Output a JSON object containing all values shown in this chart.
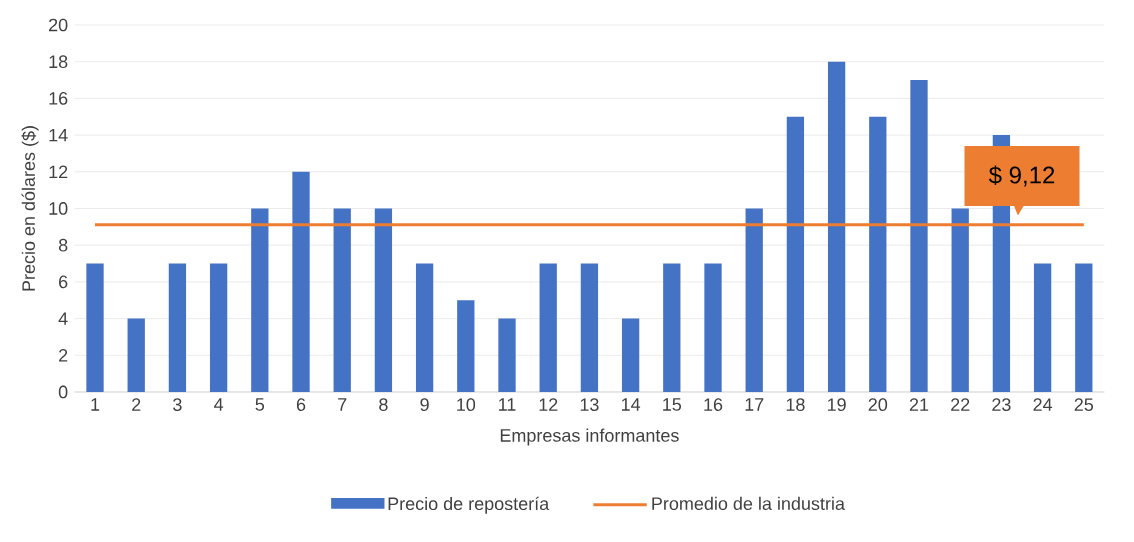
{
  "chart_data": {
    "type": "bar",
    "xlabel": "Empresas informantes",
    "ylabel": "Precio en dólares ($)",
    "categories": [
      "1",
      "2",
      "3",
      "4",
      "5",
      "6",
      "7",
      "8",
      "9",
      "10",
      "11",
      "12",
      "13",
      "14",
      "15",
      "16",
      "17",
      "18",
      "19",
      "20",
      "21",
      "22",
      "23",
      "24",
      "25"
    ],
    "series": [
      {
        "name": "Precio de repostería",
        "color": "#4472c4",
        "values": [
          7,
          4,
          7,
          7,
          10,
          12,
          10,
          10,
          7,
          5,
          4,
          7,
          7,
          4,
          7,
          7,
          10,
          15,
          18,
          15,
          17,
          10,
          14,
          7,
          7
        ]
      },
      {
        "name": "Promedio de la industria",
        "type": "line",
        "color": "#ed7d31",
        "values": [
          9.12,
          9.12,
          9.12,
          9.12,
          9.12,
          9.12,
          9.12,
          9.12,
          9.12,
          9.12,
          9.12,
          9.12,
          9.12,
          9.12,
          9.12,
          9.12,
          9.12,
          9.12,
          9.12,
          9.12,
          9.12,
          9.12,
          9.12,
          9.12,
          9.12
        ]
      }
    ],
    "annotations": [
      "$ 9,12"
    ],
    "ylim": [
      0,
      20
    ],
    "yticks": [
      0,
      2,
      4,
      6,
      8,
      10,
      12,
      14,
      16,
      18,
      20
    ],
    "grid": "y",
    "legend": "bottom"
  }
}
